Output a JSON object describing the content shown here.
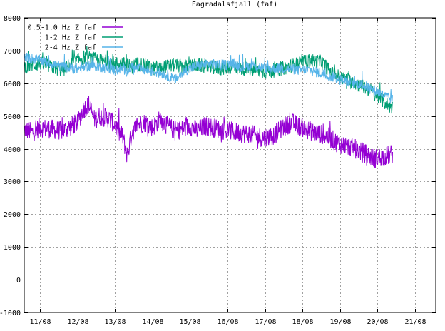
{
  "chart_data": {
    "type": "line",
    "title": "Fagradalsfjall (faf)",
    "xlabel": "",
    "ylabel": "",
    "x_ticks": [
      "11/08",
      "12/08",
      "13/08",
      "14/08",
      "15/08",
      "16/08",
      "17/08",
      "18/08",
      "19/08",
      "20/08",
      "21/08"
    ],
    "xlim": [
      "10/08 ~12:00",
      "21/08 ~12:00"
    ],
    "ylim": [
      -1000,
      8000
    ],
    "y_ticks": [
      -1000,
      0,
      1000,
      2000,
      3000,
      4000,
      5000,
      6000,
      7000,
      8000
    ],
    "grid": true,
    "legend_position": "top-left",
    "series": [
      {
        "name": "0.5-1.0 Hz Z faf",
        "color": "#9400d3",
        "band": 300,
        "x": [
          10.58,
          10.8,
          11.0,
          11.3,
          11.6,
          11.85,
          12.0,
          12.15,
          12.3,
          12.45,
          12.6,
          12.8,
          13.0,
          13.1,
          13.2,
          13.3,
          13.33,
          13.38,
          13.45,
          13.6,
          13.8,
          14.0,
          14.2,
          14.4,
          14.6,
          14.8,
          15.0,
          15.2,
          15.4,
          15.6,
          15.8,
          16.0,
          16.3,
          16.6,
          16.9,
          17.2,
          17.5,
          17.7,
          17.9,
          18.1,
          18.3,
          18.5,
          18.7,
          18.9,
          19.1,
          19.3,
          19.5,
          19.7,
          19.9,
          20.1,
          20.3,
          20.4
        ],
        "y": [
          4600,
          4500,
          4650,
          4600,
          4550,
          4700,
          4800,
          5200,
          5350,
          4900,
          5000,
          4950,
          4750,
          4500,
          4400,
          3900,
          3800,
          4100,
          4500,
          4750,
          4800,
          4650,
          4900,
          4700,
          4550,
          4600,
          4700,
          4550,
          4700,
          4650,
          4600,
          4550,
          4500,
          4450,
          4350,
          4400,
          4650,
          4800,
          4700,
          4600,
          4500,
          4450,
          4350,
          4200,
          4100,
          4050,
          3950,
          3850,
          3700,
          3750,
          3800,
          3850
        ]
      },
      {
        "name": "1-2 Hz Z faf",
        "color": "#009e73",
        "band": 220,
        "x": [
          10.58,
          10.8,
          11.0,
          11.3,
          11.6,
          11.85,
          12.0,
          12.2,
          12.4,
          12.6,
          12.8,
          13.0,
          13.2,
          13.33,
          13.45,
          13.6,
          13.8,
          14.0,
          14.3,
          14.6,
          14.9,
          15.2,
          15.5,
          15.8,
          16.1,
          16.4,
          16.7,
          17.0,
          17.3,
          17.6,
          17.9,
          18.2,
          18.5,
          18.8,
          19.0,
          19.2,
          19.4,
          19.6,
          19.8,
          20.0,
          20.2,
          20.4
        ],
        "y": [
          6500,
          6550,
          6600,
          6500,
          6400,
          6600,
          6700,
          6800,
          6750,
          6700,
          6650,
          6600,
          6600,
          6550,
          6500,
          6600,
          6550,
          6450,
          6500,
          6550,
          6500,
          6550,
          6500,
          6450,
          6500,
          6450,
          6400,
          6350,
          6400,
          6500,
          6600,
          6700,
          6650,
          6300,
          6200,
          6100,
          6000,
          5900,
          5800,
          5600,
          5400,
          5250
        ]
      },
      {
        "name": "2-4 Hz Z faf",
        "color": "#56b4e9",
        "band": 160,
        "x": [
          10.58,
          10.8,
          11.0,
          11.3,
          11.6,
          11.85,
          12.0,
          12.2,
          12.4,
          12.6,
          12.8,
          13.0,
          13.2,
          13.33,
          13.45,
          13.6,
          13.8,
          14.0,
          14.3,
          14.6,
          14.9,
          15.2,
          15.5,
          15.8,
          16.1,
          16.4,
          16.7,
          17.0,
          17.3,
          17.6,
          17.9,
          18.2,
          18.5,
          18.8,
          19.0,
          19.2,
          19.4,
          19.6,
          19.8,
          20.0,
          20.2,
          20.4
        ],
        "y": [
          6800,
          6750,
          6700,
          6600,
          6500,
          6450,
          6450,
          6500,
          6550,
          6500,
          6450,
          6400,
          6450,
          6350,
          6500,
          6450,
          6400,
          6350,
          6300,
          6100,
          6400,
          6550,
          6600,
          6550,
          6600,
          6500,
          6550,
          6450,
          6450,
          6450,
          6400,
          6400,
          6300,
          6200,
          6100,
          6050,
          6000,
          5950,
          5850,
          5750,
          5600,
          5500
        ]
      }
    ]
  }
}
